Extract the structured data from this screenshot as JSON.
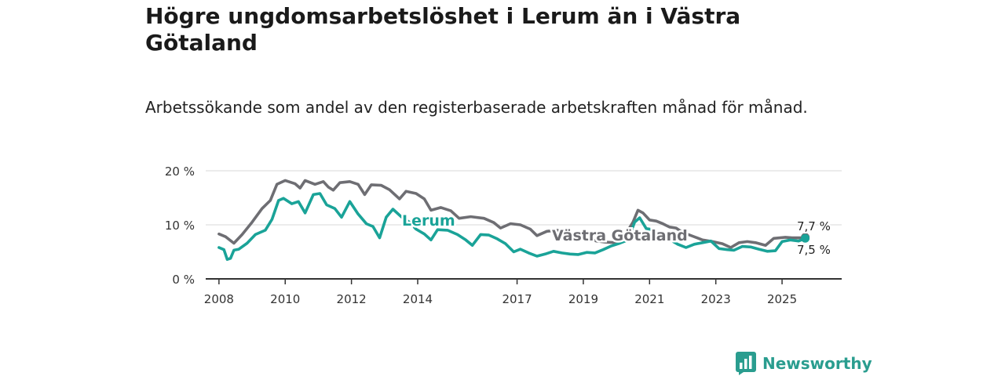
{
  "header": {
    "title": "Högre ungdomsarbetslöshet i Lerum än i Västra Götaland",
    "subtitle": "Arbetssökande som andel av den registerbaserade arbetskraften månad för månad."
  },
  "branding": {
    "name": "Newsworthy",
    "logo_icon": "bar-chart-logo-icon"
  },
  "colors": {
    "lerum": "#1aa398",
    "vastra_gotaland": "#6e6e73",
    "grid": "#d9d9d9",
    "axis": "#333333"
  },
  "chart_data": {
    "type": "line",
    "title": "Högre ungdomsarbetslöshet i Lerum än i Västra Götaland",
    "subtitle": "Arbetssökande som andel av den registerbaserade arbetskraften månad för månad.",
    "xlabel": "",
    "ylabel": "",
    "x_range": [
      2007.6,
      2026.8
    ],
    "ylim": [
      0,
      20
    ],
    "y_ticks": [
      0,
      10,
      20
    ],
    "y_tick_labels": [
      "0 %",
      "10 %",
      "20 %"
    ],
    "x_ticks": [
      2008,
      2010,
      2012,
      2014,
      2017,
      2019,
      2021,
      2023,
      2025
    ],
    "x_tick_labels": [
      "2008",
      "2010",
      "2012",
      "2014",
      "2017",
      "2019",
      "2021",
      "2023",
      "2025"
    ],
    "grid": true,
    "series": [
      {
        "name": "Västra Götaland",
        "label": "Västra Götaland",
        "end_label": "7,7 %",
        "points": [
          [
            2008.0,
            8.3
          ],
          [
            2008.2,
            7.8
          ],
          [
            2008.45,
            6.6
          ],
          [
            2008.7,
            8.2
          ],
          [
            2009.0,
            10.5
          ],
          [
            2009.3,
            13.0
          ],
          [
            2009.55,
            14.5
          ],
          [
            2009.75,
            17.5
          ],
          [
            2010.0,
            18.2
          ],
          [
            2010.3,
            17.6
          ],
          [
            2010.45,
            16.8
          ],
          [
            2010.6,
            18.2
          ],
          [
            2010.9,
            17.5
          ],
          [
            2011.15,
            18.0
          ],
          [
            2011.3,
            17.0
          ],
          [
            2011.45,
            16.4
          ],
          [
            2011.65,
            17.8
          ],
          [
            2011.95,
            18.0
          ],
          [
            2012.2,
            17.5
          ],
          [
            2012.4,
            15.6
          ],
          [
            2012.6,
            17.4
          ],
          [
            2012.9,
            17.3
          ],
          [
            2013.15,
            16.5
          ],
          [
            2013.45,
            14.8
          ],
          [
            2013.65,
            16.2
          ],
          [
            2013.95,
            15.8
          ],
          [
            2014.2,
            14.8
          ],
          [
            2014.4,
            12.7
          ],
          [
            2014.7,
            13.2
          ],
          [
            2015.0,
            12.6
          ],
          [
            2015.25,
            11.2
          ],
          [
            2015.6,
            11.5
          ],
          [
            2016.0,
            11.2
          ],
          [
            2016.3,
            10.4
          ],
          [
            2016.5,
            9.4
          ],
          [
            2016.8,
            10.2
          ],
          [
            2017.1,
            10.0
          ],
          [
            2017.4,
            9.2
          ],
          [
            2017.6,
            8.0
          ],
          [
            2017.9,
            8.8
          ],
          [
            2018.2,
            9.0
          ],
          [
            2018.5,
            8.5
          ],
          [
            2018.8,
            7.6
          ],
          [
            2019.1,
            7.5
          ],
          [
            2019.4,
            7.0
          ],
          [
            2019.65,
            6.8
          ],
          [
            2020.0,
            6.7
          ],
          [
            2020.2,
            7.5
          ],
          [
            2020.5,
            10.5
          ],
          [
            2020.65,
            12.7
          ],
          [
            2020.8,
            12.2
          ],
          [
            2021.0,
            10.9
          ],
          [
            2021.2,
            10.7
          ],
          [
            2021.4,
            10.2
          ],
          [
            2021.6,
            9.6
          ],
          [
            2021.8,
            9.4
          ],
          [
            2022.0,
            8.6
          ],
          [
            2022.3,
            7.9
          ],
          [
            2022.6,
            7.2
          ],
          [
            2022.9,
            6.9
          ],
          [
            2023.2,
            6.5
          ],
          [
            2023.45,
            5.8
          ],
          [
            2023.7,
            6.7
          ],
          [
            2023.95,
            6.9
          ],
          [
            2024.2,
            6.7
          ],
          [
            2024.5,
            6.2
          ],
          [
            2024.75,
            7.5
          ],
          [
            2025.1,
            7.7
          ],
          [
            2025.3,
            7.6
          ],
          [
            2025.6,
            7.6
          ],
          [
            2025.7,
            7.7
          ]
        ]
      },
      {
        "name": "Lerum",
        "label": "Lerum",
        "end_label": "7,5 %",
        "points": [
          [
            2008.0,
            5.8
          ],
          [
            2008.15,
            5.4
          ],
          [
            2008.25,
            3.6
          ],
          [
            2008.35,
            3.8
          ],
          [
            2008.45,
            5.3
          ],
          [
            2008.6,
            5.5
          ],
          [
            2008.85,
            6.6
          ],
          [
            2009.1,
            8.2
          ],
          [
            2009.4,
            9.0
          ],
          [
            2009.6,
            11.0
          ],
          [
            2009.8,
            14.5
          ],
          [
            2009.95,
            14.9
          ],
          [
            2010.2,
            13.9
          ],
          [
            2010.4,
            14.3
          ],
          [
            2010.6,
            12.2
          ],
          [
            2010.85,
            15.6
          ],
          [
            2011.05,
            15.8
          ],
          [
            2011.25,
            13.7
          ],
          [
            2011.5,
            13.0
          ],
          [
            2011.7,
            11.4
          ],
          [
            2011.95,
            14.3
          ],
          [
            2012.2,
            12.0
          ],
          [
            2012.45,
            10.2
          ],
          [
            2012.65,
            9.7
          ],
          [
            2012.85,
            7.6
          ],
          [
            2013.05,
            11.4
          ],
          [
            2013.25,
            12.9
          ],
          [
            2013.5,
            11.5
          ],
          [
            2013.75,
            10.5
          ],
          [
            2013.95,
            9.2
          ],
          [
            2014.2,
            8.3
          ],
          [
            2014.4,
            7.2
          ],
          [
            2014.6,
            9.1
          ],
          [
            2014.9,
            9.0
          ],
          [
            2015.2,
            8.2
          ],
          [
            2015.45,
            7.2
          ],
          [
            2015.65,
            6.2
          ],
          [
            2015.9,
            8.2
          ],
          [
            2016.15,
            8.1
          ],
          [
            2016.4,
            7.4
          ],
          [
            2016.65,
            6.5
          ],
          [
            2016.9,
            5.0
          ],
          [
            2017.1,
            5.5
          ],
          [
            2017.35,
            4.8
          ],
          [
            2017.6,
            4.2
          ],
          [
            2017.85,
            4.6
          ],
          [
            2018.1,
            5.1
          ],
          [
            2018.35,
            4.8
          ],
          [
            2018.6,
            4.6
          ],
          [
            2018.85,
            4.5
          ],
          [
            2019.1,
            4.9
          ],
          [
            2019.35,
            4.8
          ],
          [
            2019.6,
            5.4
          ],
          [
            2019.85,
            6.1
          ],
          [
            2020.1,
            6.6
          ],
          [
            2020.35,
            7.2
          ],
          [
            2020.55,
            10.5
          ],
          [
            2020.7,
            11.3
          ],
          [
            2020.9,
            9.3
          ],
          [
            2021.1,
            9.1
          ],
          [
            2021.35,
            8.1
          ],
          [
            2021.6,
            7.3
          ],
          [
            2021.85,
            6.4
          ],
          [
            2022.1,
            5.8
          ],
          [
            2022.35,
            6.4
          ],
          [
            2022.6,
            6.7
          ],
          [
            2022.85,
            7.0
          ],
          [
            2023.1,
            5.6
          ],
          [
            2023.35,
            5.4
          ],
          [
            2023.55,
            5.3
          ],
          [
            2023.8,
            6.0
          ],
          [
            2024.05,
            5.9
          ],
          [
            2024.3,
            5.5
          ],
          [
            2024.55,
            5.1
          ],
          [
            2024.8,
            5.2
          ],
          [
            2025.0,
            6.9
          ],
          [
            2025.25,
            7.2
          ],
          [
            2025.5,
            7.0
          ],
          [
            2025.7,
            7.5
          ]
        ]
      }
    ]
  }
}
